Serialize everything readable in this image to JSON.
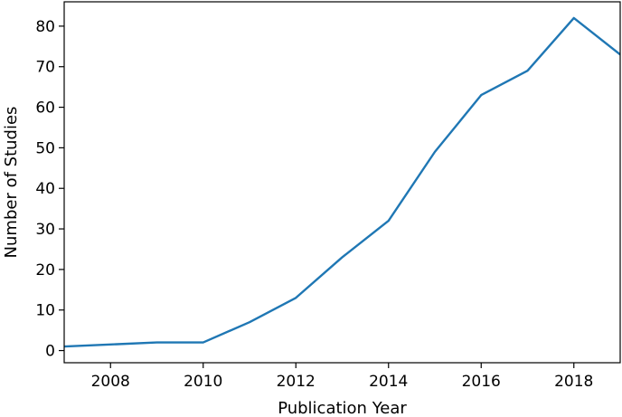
{
  "chart_data": {
    "type": "line",
    "title": "",
    "xlabel": "Publication Year",
    "ylabel": "Number of Studies",
    "xlim": [
      2007,
      2019
    ],
    "ylim": [
      -3,
      86
    ],
    "xticks": [
      2008,
      2010,
      2012,
      2014,
      2016,
      2018
    ],
    "yticks": [
      0,
      10,
      20,
      30,
      40,
      50,
      60,
      70,
      80
    ],
    "grid": false,
    "legend": "none",
    "series": [
      {
        "color": "#1f77b4",
        "x": [
          2007,
          2008,
          2009,
          2010,
          2011,
          2012,
          2013,
          2014,
          2015,
          2016,
          2017,
          2018,
          2019
        ],
        "y": [
          1,
          1.5,
          2,
          2,
          7,
          13,
          23,
          32,
          49,
          63,
          69,
          82,
          73
        ]
      }
    ]
  }
}
